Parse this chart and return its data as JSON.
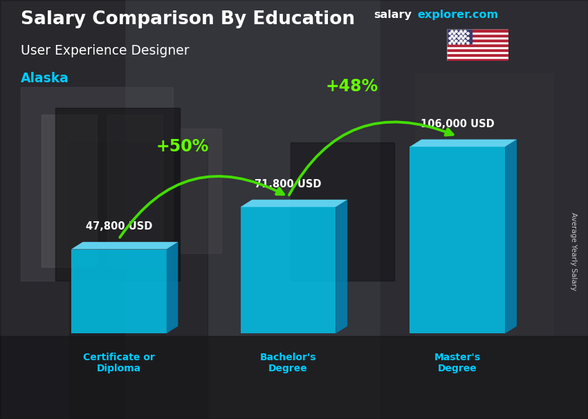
{
  "title": "Salary Comparison By Education",
  "subtitle": "User Experience Designer",
  "location": "Alaska",
  "ylabel": "Average Yearly Salary",
  "website_salary": "salary",
  "website_rest": "explorer.com",
  "categories": [
    "Certificate or\nDiploma",
    "Bachelor's\nDegree",
    "Master's\nDegree"
  ],
  "values": [
    47800,
    71800,
    106000
  ],
  "value_labels": [
    "47,800 USD",
    "71,800 USD",
    "106,000 USD"
  ],
  "pct_labels": [
    "+50%",
    "+48%"
  ],
  "bar_front_color": "#00c8f0",
  "bar_side_color": "#0088bb",
  "bar_top_color": "#66e0ff",
  "title_color": "#ffffff",
  "subtitle_color": "#ffffff",
  "location_color": "#00ccff",
  "website_salary_color": "#ffffff",
  "website_rest_color": "#00ccff",
  "label_color": "#ffffff",
  "pct_color": "#66ff00",
  "arrow_color": "#44dd00",
  "category_color": "#00ccff",
  "bg_colors": [
    "#4a4a55",
    "#3a3a45",
    "#505060",
    "#454550"
  ],
  "bar_alpha": 0.82,
  "ylim_max": 120000
}
